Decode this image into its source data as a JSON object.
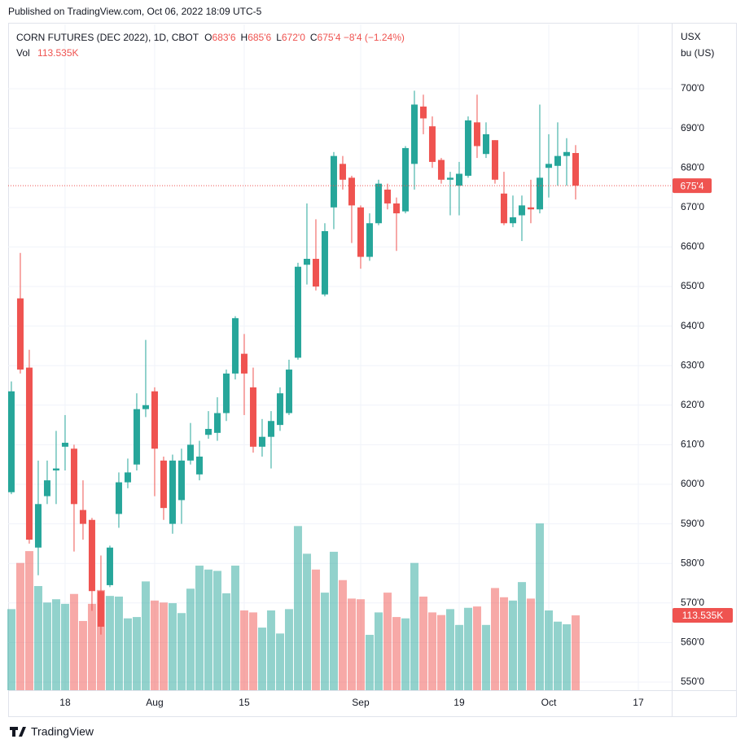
{
  "published": "Published on TradingView.com, Oct 06, 2022 18:09 UTC-5",
  "footer": "TradingView",
  "chart_data": {
    "type": "candlestick",
    "symbol": "CORN FUTURES (DEC 2022), 1D, CBOT",
    "ohlc_labels": [
      {
        "label": "O",
        "value": "683'6"
      },
      {
        "label": "H",
        "value": "685'6"
      },
      {
        "label": "L",
        "value": "672'0"
      },
      {
        "label": "C",
        "value": "675'4"
      }
    ],
    "change_label": "−8'4 (−1.24%)",
    "volume_name": "Vol",
    "volume_label": "113.535K",
    "last_price_label": "675'4",
    "currency": "USX",
    "unit": "bu (US)",
    "up_color": "#26a69a",
    "down_color": "#ef5350",
    "grid": true,
    "xlim": [
      -0.36,
      73.73
    ],
    "xticks": [
      {
        "value": 6,
        "label": "18"
      },
      {
        "value": 16,
        "label": "Aug"
      },
      {
        "value": 26,
        "label": "15"
      },
      {
        "value": 39,
        "label": "Sep"
      },
      {
        "value": 50,
        "label": "19"
      },
      {
        "value": 60,
        "label": "Oct"
      },
      {
        "value": 70,
        "label": "17"
      }
    ],
    "ylim": [
      547.94,
      716.26
    ],
    "yticks": [
      {
        "value": 550,
        "label": "550'0"
      },
      {
        "value": 560,
        "label": "560'0"
      },
      {
        "value": 570,
        "label": "570'0"
      },
      {
        "value": 580,
        "label": "580'0"
      },
      {
        "value": 590,
        "label": "590'0"
      },
      {
        "value": 600,
        "label": "600'0"
      },
      {
        "value": 610,
        "label": "610'0"
      },
      {
        "value": 620,
        "label": "620'0"
      },
      {
        "value": 630,
        "label": "630'0"
      },
      {
        "value": 640,
        "label": "640'0"
      },
      {
        "value": 650,
        "label": "650'0"
      },
      {
        "value": 660,
        "label": "660'0"
      },
      {
        "value": 670,
        "label": "670'0"
      },
      {
        "value": 680,
        "label": "680'0"
      },
      {
        "value": 690,
        "label": "690'0"
      },
      {
        "value": 700,
        "label": "700'0"
      }
    ],
    "volume_lim": [
      0,
      400000
    ],
    "open": [
      598,
      647,
      629.5,
      584,
      597,
      603.5,
      609.5,
      609,
      593.5,
      591,
      573,
      574.5,
      592.5,
      600.5,
      605,
      619,
      623.5,
      606,
      590,
      596,
      606,
      602.5,
      612.5,
      613,
      618,
      628,
      633,
      624.5,
      609.5,
      612,
      615,
      618,
      632,
      655.5,
      657,
      648,
      670,
      681,
      677.5,
      670,
      657.5,
      666,
      674.5,
      671,
      669,
      681,
      695.5,
      690.5,
      682,
      677,
      675.5,
      678,
      691.5,
      683.5,
      687,
      673.5,
      666,
      668,
      670,
      669.5,
      680,
      680.5,
      683,
      683.75
    ],
    "high": [
      626,
      658.5,
      634,
      606,
      606,
      613.5,
      617.5,
      610,
      601,
      591.5,
      582,
      584.5,
      603,
      606.5,
      623,
      636.5,
      624.5,
      607,
      607.5,
      609,
      615.5,
      611,
      618.5,
      622,
      629,
      642.5,
      638,
      629.5,
      616.5,
      618.5,
      624.5,
      631.5,
      656,
      671,
      667,
      666,
      684,
      683,
      678,
      670.5,
      668.5,
      677,
      676,
      672.5,
      685.5,
      699.5,
      698.5,
      693,
      682.5,
      679,
      681.5,
      693,
      698.5,
      691.5,
      687,
      679,
      673,
      673,
      677,
      696,
      688.5,
      691.5,
      687.5,
      685.75
    ],
    "low": [
      597.5,
      628,
      585,
      577,
      595,
      595,
      603.5,
      583,
      586,
      568,
      562,
      574,
      589,
      599,
      603.5,
      617,
      597,
      591,
      587.5,
      590,
      605,
      601,
      611.5,
      611,
      616,
      626.5,
      617.5,
      608,
      607,
      604,
      613.5,
      617.5,
      631.5,
      650.5,
      649,
      647.5,
      664.5,
      674.5,
      661,
      654.5,
      656.5,
      665.5,
      669.5,
      659,
      668.5,
      674.5,
      688.5,
      680,
      676,
      668,
      668,
      677.5,
      682.5,
      682.5,
      676,
      665.5,
      665,
      661.5,
      666,
      668.5,
      672.5,
      675.5,
      675.5,
      672
    ],
    "close": [
      623.5,
      629,
      586,
      595,
      601,
      604,
      610.5,
      595,
      590,
      573,
      564,
      584,
      600.5,
      603,
      619,
      620,
      609,
      594,
      606,
      606,
      610,
      607,
      614,
      618,
      628,
      642,
      628,
      609.5,
      612,
      616,
      623,
      629,
      655,
      657,
      650,
      664,
      683,
      677,
      670.5,
      657.5,
      666,
      676,
      671,
      668.5,
      685,
      696,
      692.5,
      681.5,
      677,
      677.5,
      678.5,
      692,
      685.5,
      688.5,
      677,
      666,
      667.5,
      670.5,
      669.5,
      677.5,
      681,
      683,
      684,
      675.5
    ],
    "volume": [
      123000,
      193000,
      211000,
      158000,
      133000,
      138000,
      131000,
      146000,
      105000,
      131000,
      152000,
      143000,
      142000,
      109000,
      111000,
      165000,
      136000,
      133000,
      132000,
      117000,
      154000,
      189000,
      183000,
      181000,
      147000,
      189000,
      121000,
      118000,
      95000,
      121000,
      86000,
      123000,
      249000,
      207000,
      183000,
      148000,
      210000,
      167000,
      139000,
      138000,
      84000,
      118000,
      148000,
      111000,
      109000,
      193000,
      142000,
      118000,
      114000,
      123000,
      99000,
      125000,
      127000,
      99000,
      155000,
      141000,
      136000,
      164000,
      139000,
      253000,
      121000,
      104000,
      100000,
      113535
    ]
  }
}
